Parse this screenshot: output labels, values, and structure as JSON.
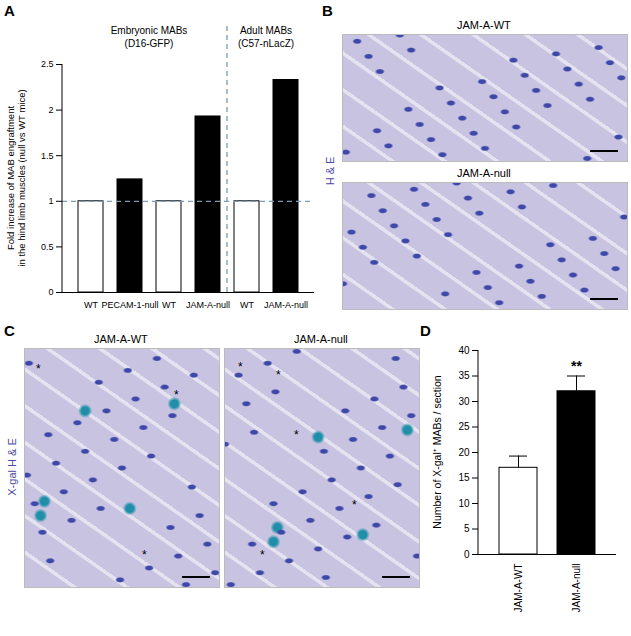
{
  "chart_data": [
    {
      "title": "A",
      "type": "bar",
      "y_label": "Fold increase of MAB engraftment\nin the hind limb muscles (null vs WT mice)",
      "categories": [
        "WT",
        "PECAM-1-null",
        "WT",
        "JAM-A-null",
        "WT",
        "JAM-A-null"
      ],
      "values": [
        1,
        1.24,
        1,
        1.93,
        1,
        2.33
      ],
      "colors": [
        "#ffffff",
        "#000000",
        "#ffffff",
        "#000000",
        "#ffffff",
        "#000000"
      ],
      "ylim": [
        0,
        2.5
      ],
      "yticks": [
        0,
        0.5,
        1,
        1.5,
        2,
        2.5
      ],
      "baseline": 1,
      "groups": [
        {
          "label": "Embryonic MABs\n(D16-GFP)",
          "start": 0,
          "end": 3
        },
        {
          "label": "Adult MABs\n(C57-nLacZ)",
          "start": 4,
          "end": 5
        }
      ]
    },
    {
      "title": "D",
      "type": "bar",
      "y_label": "Number of X-gal⁺ MABs / section",
      "categories": [
        "JAM-A-WT",
        "JAM-A-null"
      ],
      "values": [
        17,
        32
      ],
      "errors": [
        2.3,
        3
      ],
      "colors": [
        "#ffffff",
        "#000000"
      ],
      "ylim": [
        0,
        40
      ],
      "yticks": [
        0,
        5,
        10,
        15,
        20,
        25,
        30,
        35,
        40
      ],
      "annotations": [
        {
          "text": "**",
          "category": "JAM-A-null"
        }
      ]
    }
  ],
  "images": [
    {
      "title": "B",
      "side_label": "H & E",
      "panels": [
        {
          "label": "JAM-A-WT"
        },
        {
          "label": "JAM-A-null"
        }
      ]
    },
    {
      "title": "C",
      "side_label": "X-gal H & E",
      "panels": [
        {
          "label": "JAM-A-WT",
          "marker": "*"
        },
        {
          "label": "JAM-A-null",
          "marker": "*"
        }
      ]
    }
  ]
}
